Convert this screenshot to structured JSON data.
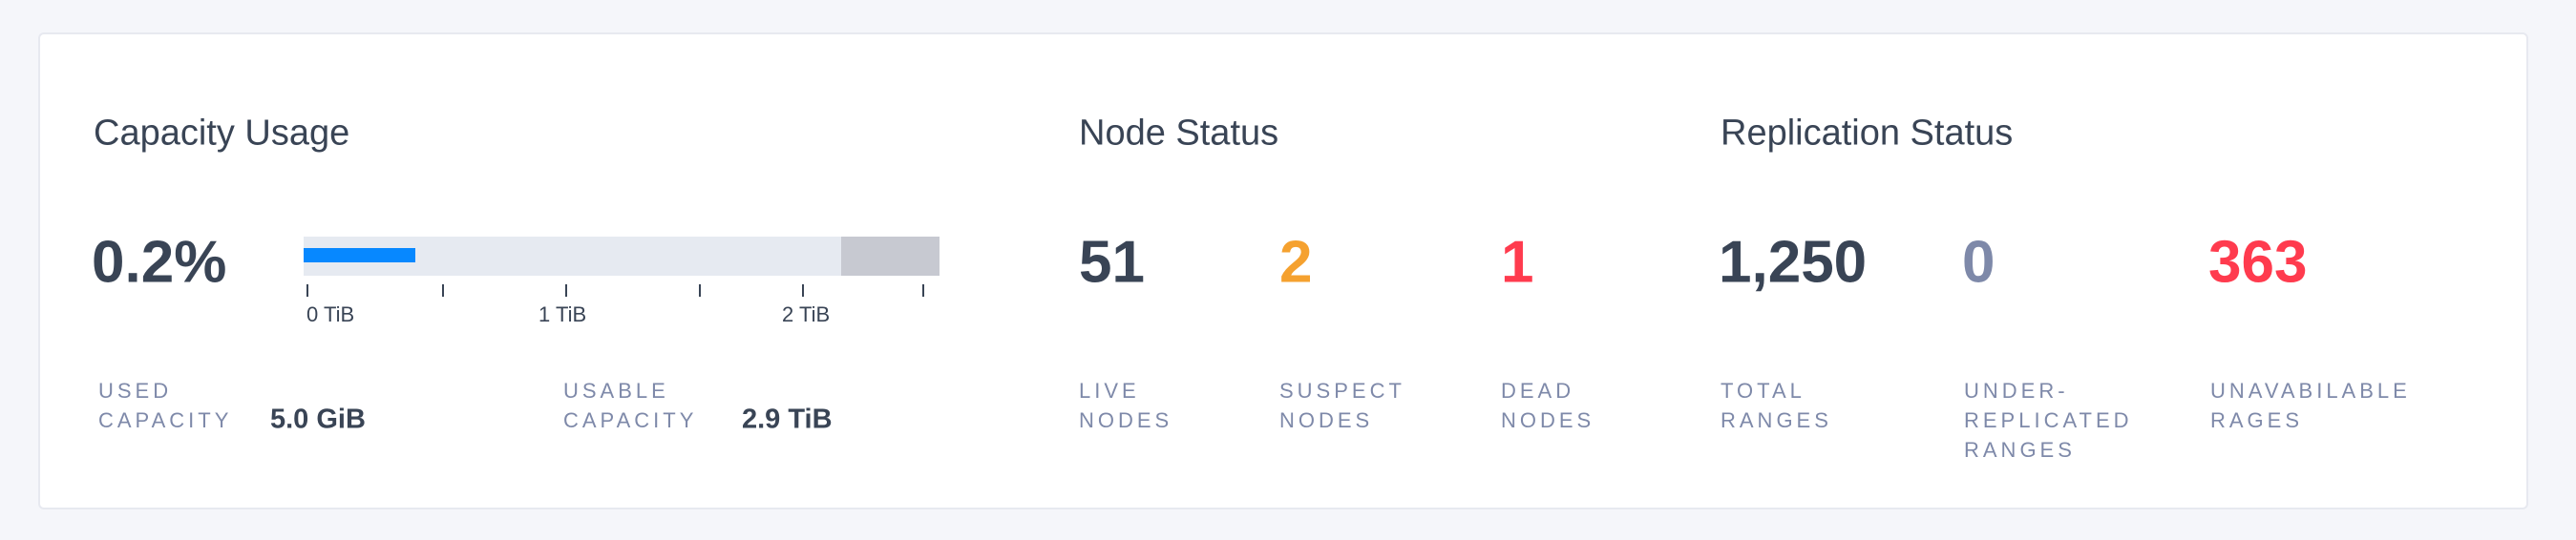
{
  "capacity": {
    "title": "Capacity Usage",
    "percent_label": "0.2%",
    "bar": {
      "used_fill_fraction": 0.175,
      "usable_fraction": 0.845,
      "used_color": "#0788ff",
      "track_color": "#e6eaf1",
      "rest_color": "#c7c9d1"
    },
    "axis_labels": [
      "0 TiB",
      "1 TiB",
      "2 TiB"
    ],
    "used": {
      "label_line1": "USED",
      "label_line2": "CAPACITY",
      "value": "5.0 GiB"
    },
    "usable": {
      "label_line1": "USABLE",
      "label_line2": "CAPACITY",
      "value": "2.9 TiB"
    }
  },
  "node_status": {
    "title": "Node Status",
    "stats": [
      {
        "value": "51",
        "label_line1": "LIVE",
        "label_line2": "NODES",
        "color": "#394455"
      },
      {
        "value": "2",
        "label_line1": "SUSPECT",
        "label_line2": "NODES",
        "color": "#f5a12f"
      },
      {
        "value": "1",
        "label_line1": "DEAD",
        "label_line2": "NODES",
        "color": "#ff3b4e"
      }
    ]
  },
  "replication_status": {
    "title": "Replication Status",
    "stats": [
      {
        "value": "1,250",
        "label_line1": "TOTAL",
        "label_line2": "RANGES",
        "color": "#394455"
      },
      {
        "value": "0",
        "label_line1": "UNDER-",
        "label_line2": "REPLICATED",
        "label_line3": "RANGES",
        "color": "#7e89a9"
      },
      {
        "value": "363",
        "label_line1": "UNAVABILABLE",
        "label_line2": "RAGES",
        "color": "#ff3b4e"
      }
    ]
  }
}
